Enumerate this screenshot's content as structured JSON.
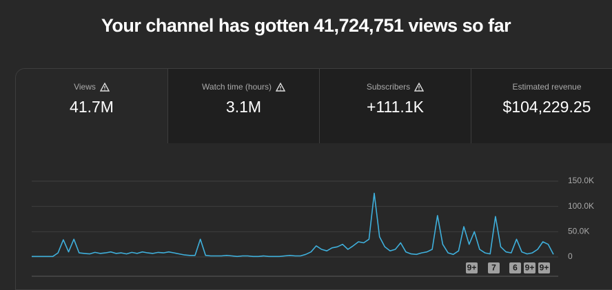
{
  "header": {
    "title": "Your channel has gotten 41,724,751 views so far"
  },
  "metrics": [
    {
      "label": "Views",
      "value": "41.7M"
    },
    {
      "label": "Watch time (hours)",
      "value": "3.1M"
    },
    {
      "label": "Subscribers",
      "value": "+111.1K"
    },
    {
      "label": "Estimated revenue",
      "value": "$104,229.25"
    }
  ],
  "chart_data": {
    "type": "line",
    "color": "#3fb0dc",
    "values": [
      1000,
      1000,
      1000,
      1000,
      1000,
      8000,
      34000,
      10000,
      35000,
      8000,
      7000,
      6000,
      9000,
      7000,
      8000,
      10000,
      7000,
      8000,
      6000,
      9000,
      7000,
      10000,
      8000,
      7000,
      9000,
      8000,
      10000,
      8000,
      6000,
      4000,
      3000,
      3000,
      35000,
      3000,
      2000,
      2000,
      2000,
      3000,
      2000,
      1000,
      2000,
      2000,
      1000,
      1000,
      2000,
      1000,
      1000,
      1000,
      2000,
      3000,
      2000,
      2000,
      5000,
      10000,
      22000,
      15000,
      12000,
      18000,
      20000,
      25000,
      15000,
      22000,
      30000,
      28000,
      35000,
      126000,
      40000,
      20000,
      12000,
      15000,
      28000,
      10000,
      6000,
      5000,
      8000,
      10000,
      15000,
      82000,
      25000,
      8000,
      5000,
      12000,
      60000,
      25000,
      50000,
      15000,
      8000,
      6000,
      80000,
      20000,
      10000,
      8000,
      35000,
      10000,
      6000,
      8000,
      15000,
      30000,
      25000,
      5000
    ],
    "ylim": [
      0,
      150000
    ],
    "yticks": [
      0,
      {
        "value": 50000,
        "label": "50.0K"
      },
      {
        "value": 100000,
        "label": "100.0K"
      },
      {
        "value": 150000,
        "label": "150.0K"
      }
    ],
    "grid": true,
    "annotations": [
      "9+",
      "7",
      "6",
      "9+",
      "9+"
    ]
  }
}
